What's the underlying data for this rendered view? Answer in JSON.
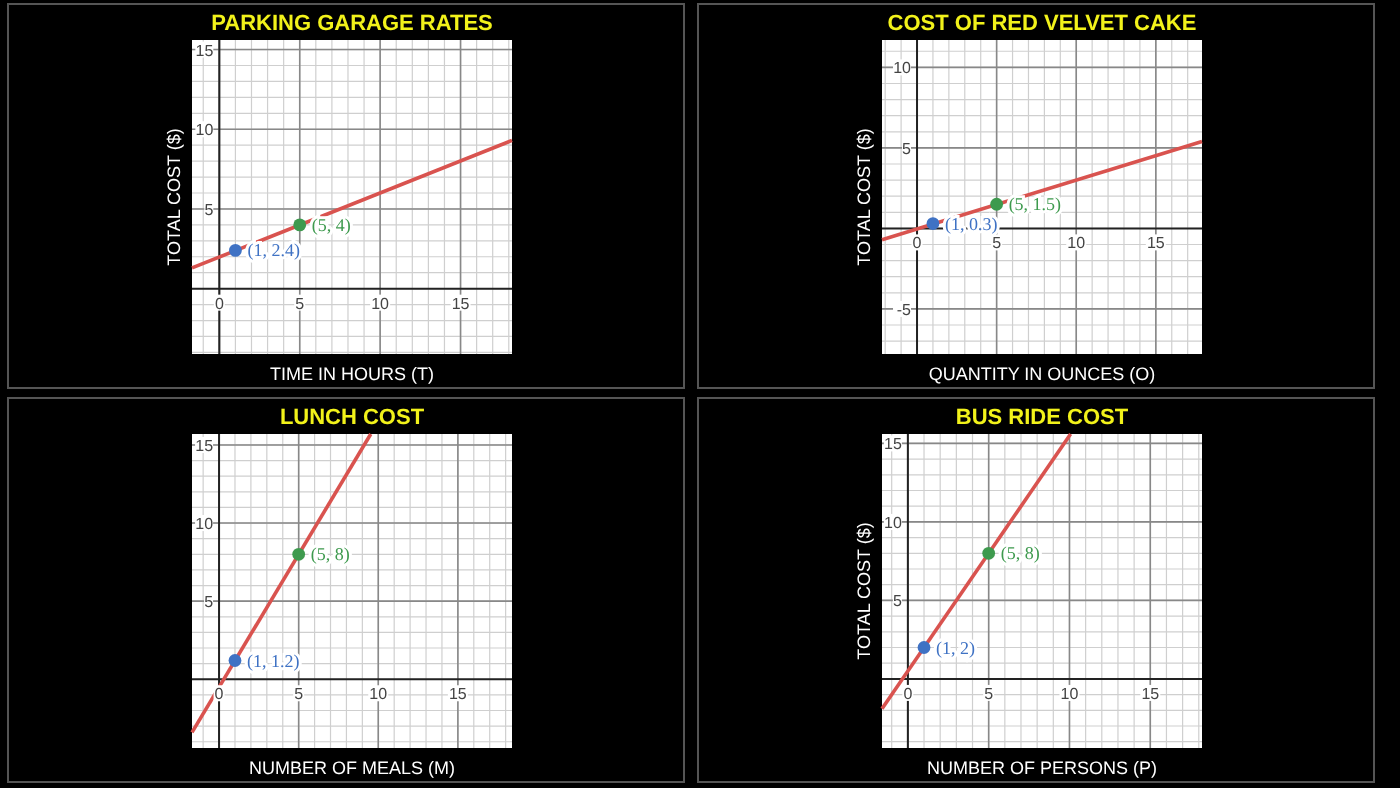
{
  "chart_data": [
    {
      "type": "line",
      "title": "PARKING GARAGE RATES",
      "xlabel": "TIME IN HOURS (T)",
      "ylabel": "TOTAL COST ($)",
      "xlim": [
        -1.7,
        18.2
      ],
      "ylim": [
        -4.1,
        15.6
      ],
      "xticks": [
        0,
        5,
        10,
        15
      ],
      "yticks": [
        5,
        10,
        15
      ],
      "grid": true,
      "series": [
        {
          "color": "#d9534f",
          "x": [
            -1.7,
            18.2
          ],
          "values": [
            1.3,
            9.3
          ]
        },
        {
          "type": "scatter",
          "marker": "circle",
          "color": "#3f72c4",
          "x": [
            1
          ],
          "values": [
            2.4
          ]
        },
        {
          "type": "scatter",
          "marker": "circle",
          "color": "#3e9a4e",
          "x": [
            5
          ],
          "values": [
            4
          ]
        }
      ],
      "annotations": [
        "(1, 2.4)",
        "(5, 4)"
      ]
    },
    {
      "type": "line",
      "title": "COST OF RED VELVET CAKE",
      "xlabel": "QUANTITY IN OUNCES (O)",
      "ylabel": "TOTAL COST ($)",
      "xlim": [
        -2.2,
        17.9
      ],
      "ylim": [
        -7.8,
        11.7
      ],
      "xticks": [
        0,
        5,
        10,
        15
      ],
      "yticks": [
        -5,
        5,
        10
      ],
      "grid": true,
      "series": [
        {
          "color": "#d9534f",
          "x": [
            -2.2,
            17.9
          ],
          "values": [
            -0.7,
            5.4
          ]
        },
        {
          "type": "scatter",
          "marker": "circle",
          "color": "#3f72c4",
          "x": [
            1
          ],
          "values": [
            0.3
          ]
        },
        {
          "type": "scatter",
          "marker": "circle",
          "color": "#3e9a4e",
          "x": [
            5
          ],
          "values": [
            1.5
          ]
        }
      ],
      "annotations": [
        "(1, 0.3)",
        "(5, 1.5)"
      ]
    },
    {
      "type": "line",
      "title": "LUNCH COST",
      "xlabel": "NUMBER OF MEALS (M)",
      "xlim": [
        -1.7,
        18.4
      ],
      "ylim": [
        -4.4,
        15.7
      ],
      "xticks": [
        0,
        5,
        10,
        15
      ],
      "yticks": [
        5,
        10,
        15
      ],
      "grid": true,
      "series": [
        {
          "color": "#d9534f",
          "x": [
            -1.7,
            9.53
          ],
          "values": [
            -3.4,
            15.7
          ]
        },
        {
          "type": "scatter",
          "marker": "circle",
          "color": "#3f72c4",
          "x": [
            1
          ],
          "values": [
            1.2
          ]
        },
        {
          "type": "scatter",
          "marker": "circle",
          "color": "#3e9a4e",
          "x": [
            5
          ],
          "values": [
            8
          ]
        }
      ],
      "annotations": [
        "(1, 1.2)",
        "(5, 8)"
      ]
    },
    {
      "type": "line",
      "title": "BUS RIDE COST",
      "xlabel": "NUMBER OF PERSONS (P)",
      "ylabel": "TOTAL COST ($)",
      "xlim": [
        -1.6,
        18.2
      ],
      "ylim": [
        -4.4,
        15.6
      ],
      "xticks": [
        0,
        5,
        10,
        15
      ],
      "yticks": [
        5,
        10,
        15
      ],
      "grid": true,
      "series": [
        {
          "color": "#d9534f",
          "x": [
            -1.6,
            10.07
          ],
          "values": [
            -1.9,
            15.6
          ]
        },
        {
          "type": "scatter",
          "marker": "circle",
          "color": "#3f72c4",
          "x": [
            1
          ],
          "values": [
            2
          ]
        },
        {
          "type": "scatter",
          "marker": "circle",
          "color": "#3e9a4e",
          "x": [
            5
          ],
          "values": [
            8
          ]
        }
      ],
      "annotations": [
        "(1, 2)",
        "(5, 8)"
      ]
    }
  ]
}
